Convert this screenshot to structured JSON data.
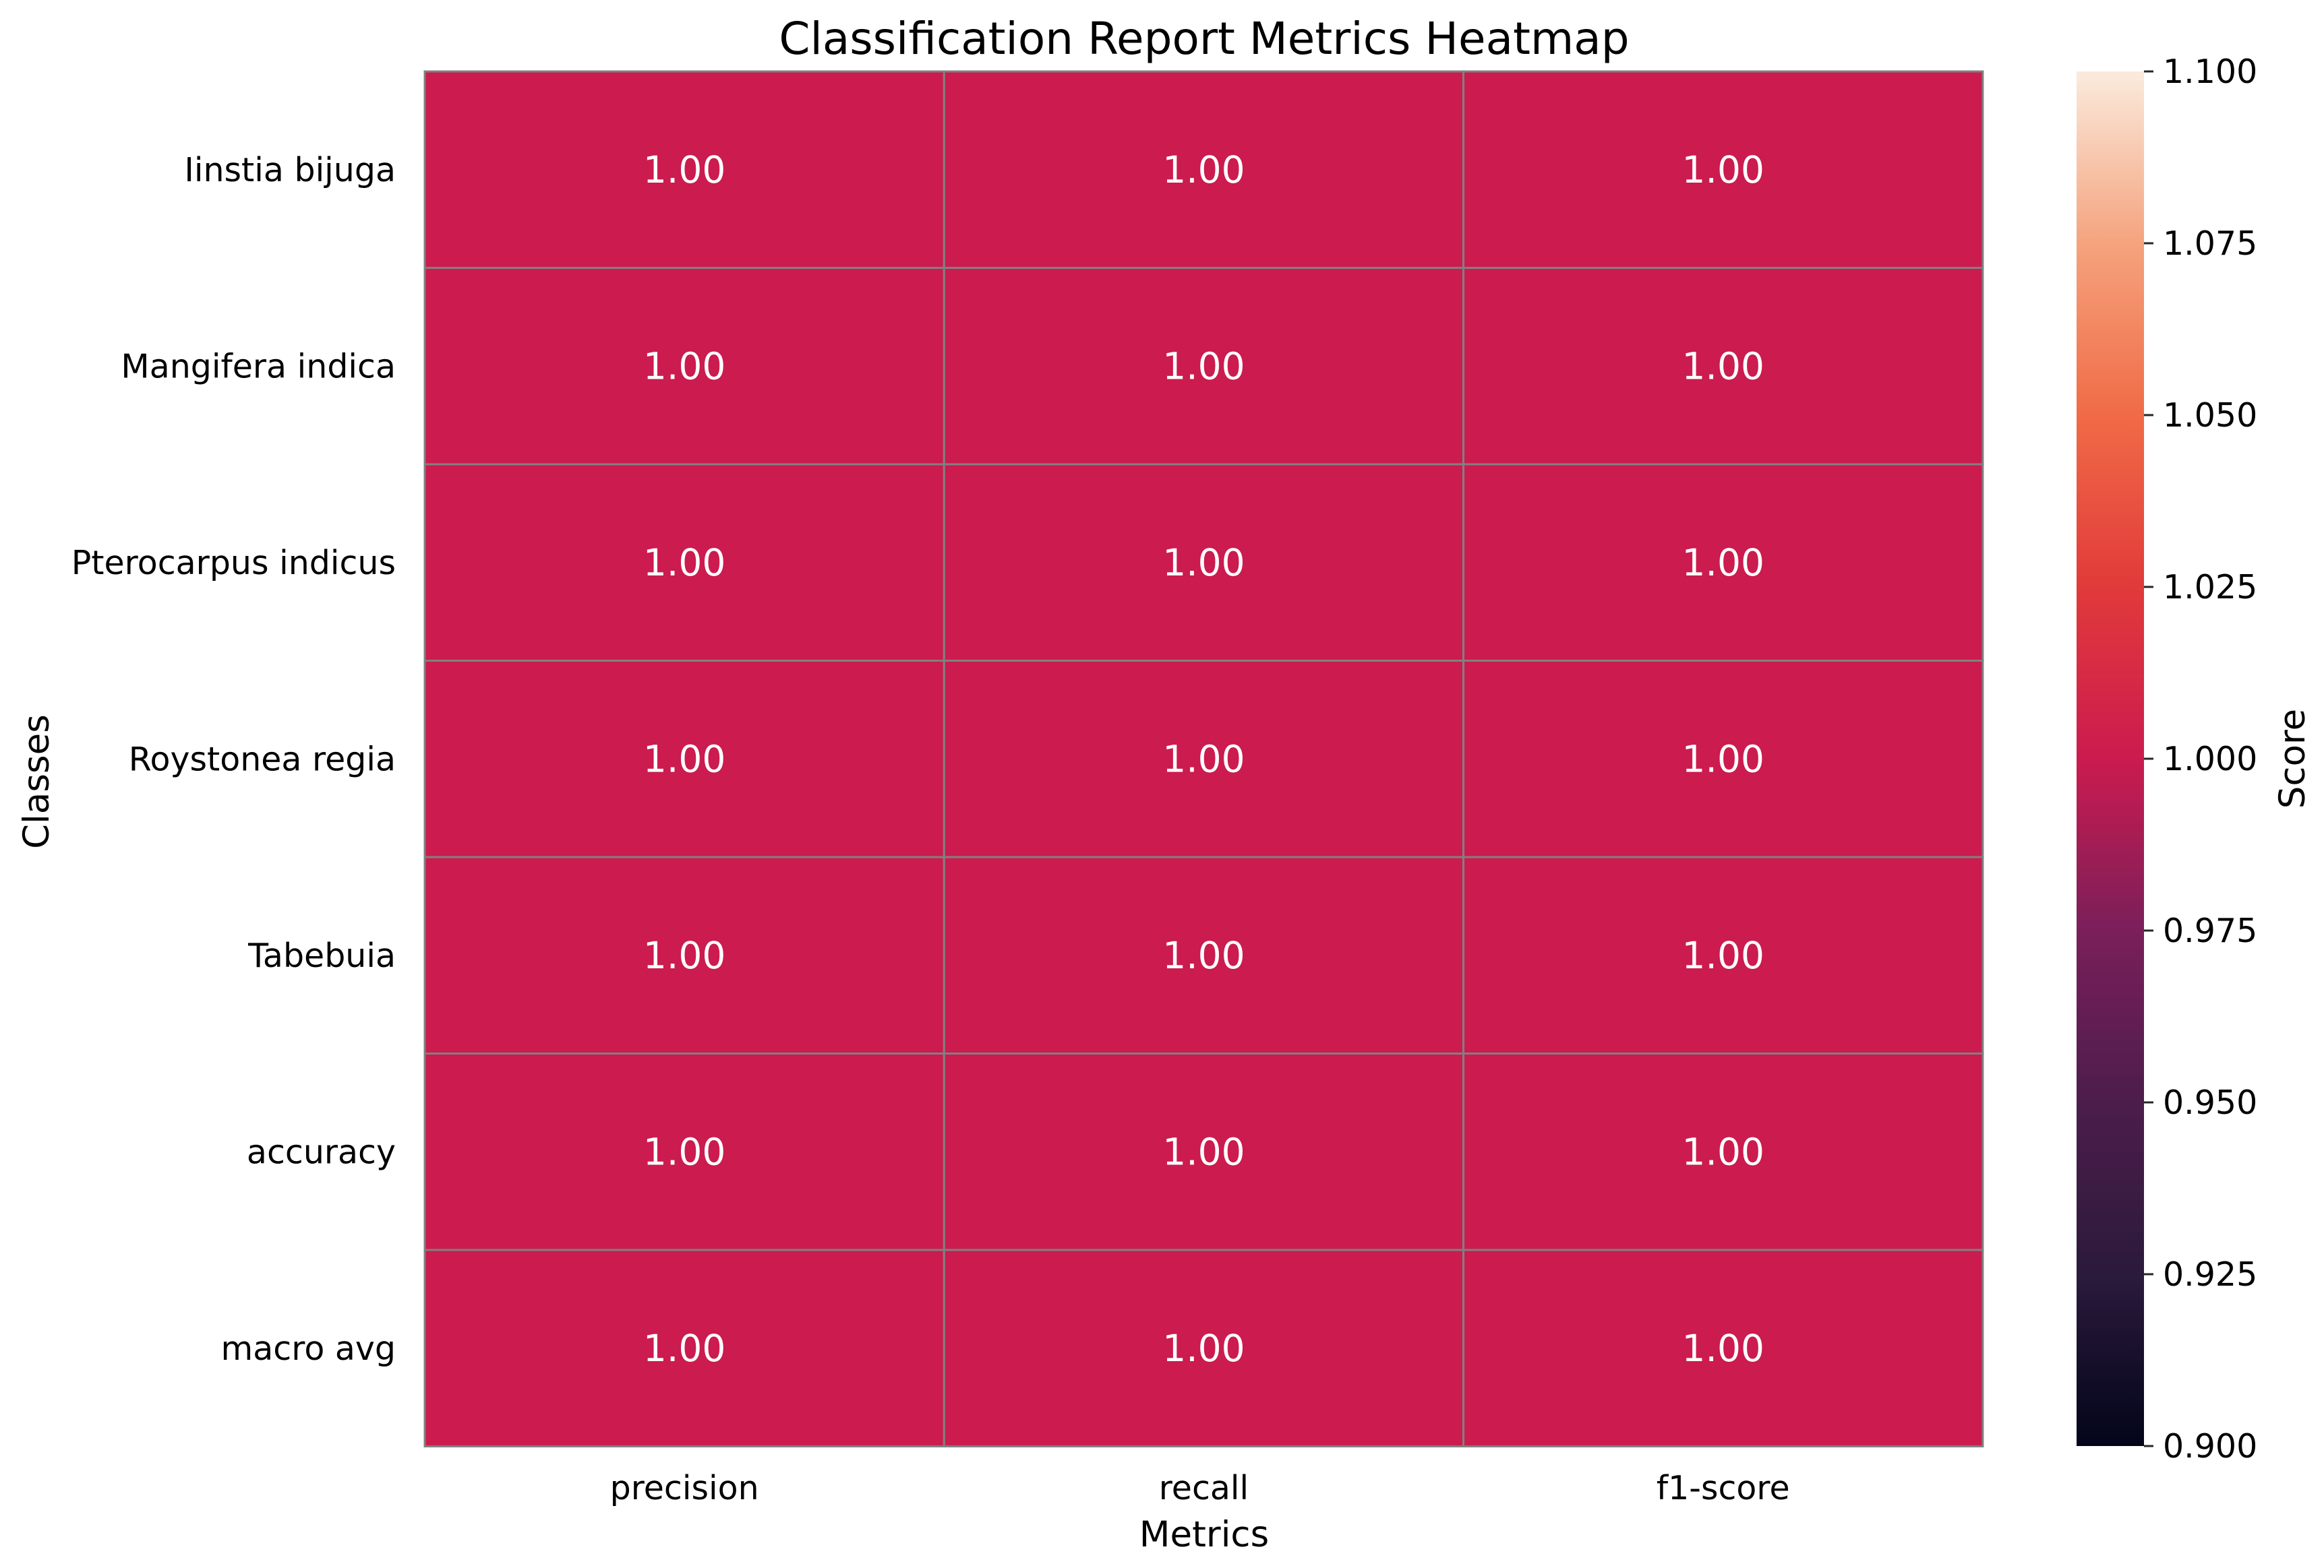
{
  "chart_data": {
    "type": "heatmap",
    "title": "Classification Report Metrics Heatmap",
    "xlabel": "Metrics",
    "ylabel": "Classes",
    "x_categories": [
      "precision",
      "recall",
      "f1-score"
    ],
    "y_categories": [
      "Iinstia bijuga",
      "Mangifera indica",
      "Pterocarpus indicus",
      "Roystonea regia",
      "Tabebuia",
      "accuracy",
      "macro avg"
    ],
    "values": [
      [
        1.0,
        1.0,
        1.0
      ],
      [
        1.0,
        1.0,
        1.0
      ],
      [
        1.0,
        1.0,
        1.0
      ],
      [
        1.0,
        1.0,
        1.0
      ],
      [
        1.0,
        1.0,
        1.0
      ],
      [
        1.0,
        1.0,
        1.0
      ],
      [
        1.0,
        1.0,
        1.0
      ]
    ],
    "value_format": "2 decimals",
    "colorbar": {
      "label": "Score",
      "range": [
        0.9,
        1.1
      ],
      "ticks": [
        "0.900",
        "0.925",
        "0.950",
        "0.975",
        "1.000",
        "1.025",
        "1.050",
        "1.075",
        "1.100"
      ],
      "colormap": "rocket"
    },
    "grid": true
  }
}
